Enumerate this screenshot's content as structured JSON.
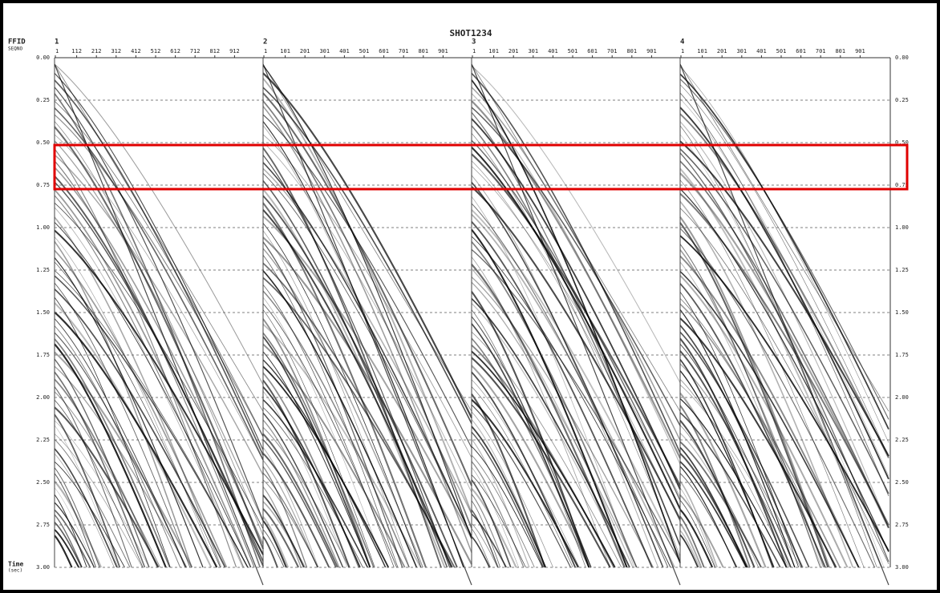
{
  "title": "SHOT1234",
  "header_labels": [
    "FFID",
    "SEQNO"
  ],
  "panels": [
    {
      "label": "1",
      "ticks": [
        "1",
        "112",
        "212",
        "312",
        "412",
        "512",
        "612",
        "712",
        "812",
        "912"
      ]
    },
    {
      "label": "2",
      "ticks": [
        "1",
        "101",
        "201",
        "301",
        "401",
        "501",
        "601",
        "701",
        "801",
        "901"
      ]
    },
    {
      "label": "3",
      "ticks": [
        "1",
        "101",
        "201",
        "301",
        "401",
        "501",
        "601",
        "701",
        "801",
        "901"
      ]
    },
    {
      "label": "4",
      "ticks": [
        "1",
        "101",
        "201",
        "301",
        "401",
        "501",
        "601",
        "701",
        "801",
        "901"
      ]
    }
  ],
  "time_axis": {
    "label": "Time",
    "unit": "(sec)",
    "ticks": [
      "0.00",
      "0.25",
      "0.50",
      "0.75",
      "1.00",
      "1.25",
      "1.50",
      "1.75",
      "2.00",
      "2.25",
      "2.50",
      "2.75",
      "3.00"
    ]
  }
}
